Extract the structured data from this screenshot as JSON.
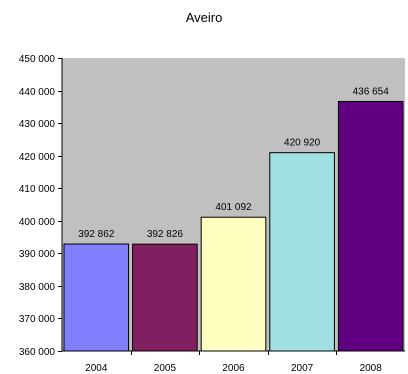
{
  "chart_data": {
    "type": "bar",
    "title": "Aveiro",
    "categories": [
      "2004",
      "2005",
      "2006",
      "2007",
      "2008"
    ],
    "values": [
      392862,
      392826,
      401092,
      420920,
      436654
    ],
    "value_labels": [
      "392 862",
      "392 826",
      "401 092",
      "420 920",
      "436 654"
    ],
    "bar_colors": [
      "#8080ff",
      "#802060",
      "#ffffc0",
      "#a0e0e0",
      "#600080"
    ],
    "plot_background": "#c0c0c0",
    "ylim": [
      360000,
      450000
    ],
    "yticks": [
      360000,
      370000,
      380000,
      390000,
      400000,
      410000,
      420000,
      430000,
      440000,
      450000
    ],
    "ytick_labels": [
      "360 000",
      "370 000",
      "380 000",
      "390 000",
      "400 000",
      "410 000",
      "420 000",
      "430 000",
      "440 000",
      "450 000"
    ],
    "xlabel": "",
    "ylabel": "",
    "grid": false,
    "legend": "none"
  }
}
